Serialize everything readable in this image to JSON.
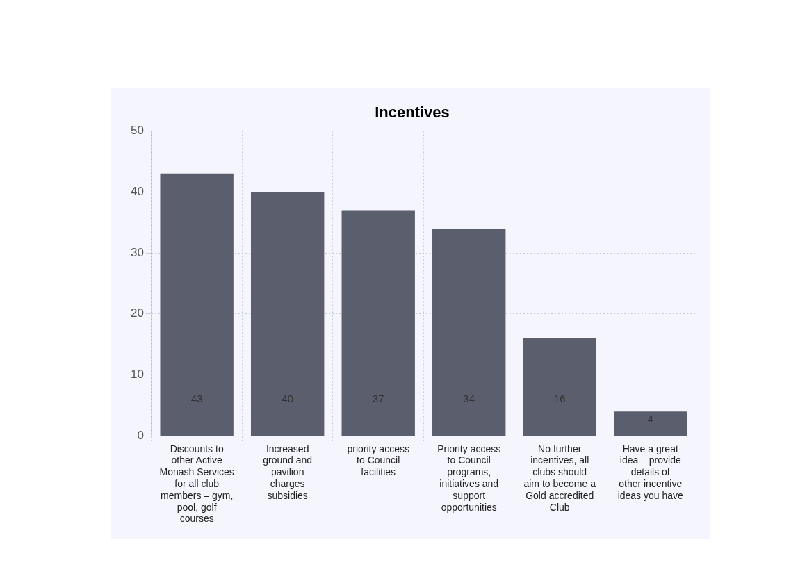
{
  "chart_data": {
    "type": "bar",
    "title": "Incentives",
    "categories": [
      "Discounts to other Active Monash Services for all club members – gym, pool, golf courses",
      "Increased ground and pavilion charges subsidies",
      "priority access to Council facilities",
      "Priority access to Council programs, initiatives and support opportunities",
      "No further incentives, all clubs should aim to become a Gold accredited Club",
      "Have a great idea – provide details of other incentive ideas you have"
    ],
    "values": [
      43,
      40,
      37,
      34,
      16,
      4
    ],
    "color": "#5b5e6c",
    "ylim": [
      0,
      50
    ],
    "yticks": [
      0,
      10,
      20,
      30,
      40,
      50
    ],
    "grid": true,
    "data_labels": true
  }
}
